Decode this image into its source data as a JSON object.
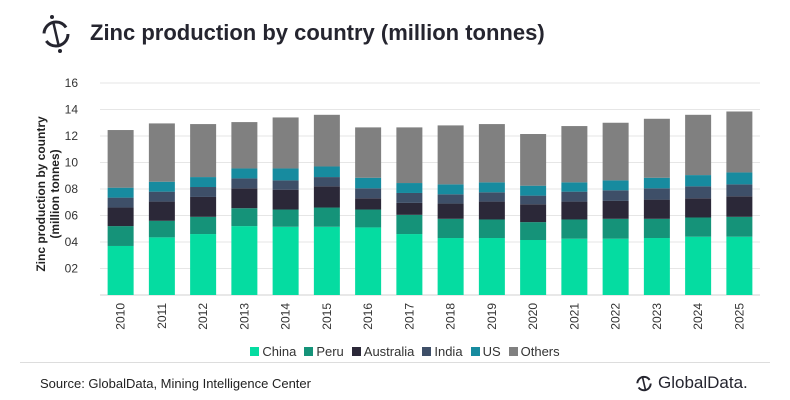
{
  "title": "Zinc production by country (million tonnes)",
  "source": "Source: GlobalData, Mining Intelligence Center",
  "brand": "GlobalData.",
  "chart_data": {
    "type": "bar",
    "stacked": true,
    "title": "Zinc production by country (million tonnes)",
    "xlabel": "",
    "ylabel": "Zinc production by country (million tonnes)",
    "ylim": [
      0,
      16
    ],
    "yticks": [
      "",
      "02",
      "04",
      "06",
      "08",
      "10",
      "12",
      "14",
      "16"
    ],
    "grid": true,
    "legend": "bottom",
    "categories": [
      "2010",
      "2011",
      "2012",
      "2013",
      "2014",
      "2015",
      "2016",
      "2017",
      "2018",
      "2019",
      "2020",
      "2021",
      "2022",
      "2023",
      "2024",
      "2025"
    ],
    "series": [
      {
        "name": "China",
        "color": "#05DCA1",
        "values": [
          3.7,
          4.35,
          4.6,
          5.2,
          5.15,
          5.15,
          5.1,
          4.6,
          4.3,
          4.3,
          4.15,
          4.25,
          4.25,
          4.3,
          4.4,
          4.4
        ]
      },
      {
        "name": "Peru",
        "color": "#159379",
        "values": [
          1.5,
          1.25,
          1.3,
          1.35,
          1.3,
          1.45,
          1.35,
          1.45,
          1.45,
          1.4,
          1.35,
          1.45,
          1.5,
          1.45,
          1.45,
          1.5
        ]
      },
      {
        "name": "Australia",
        "color": "#2B2838",
        "values": [
          1.4,
          1.45,
          1.5,
          1.5,
          1.5,
          1.6,
          0.85,
          0.9,
          1.15,
          1.35,
          1.35,
          1.35,
          1.35,
          1.45,
          1.45,
          1.55
        ]
      },
      {
        "name": "India",
        "color": "#3E4F68",
        "values": [
          0.75,
          0.75,
          0.75,
          0.75,
          0.7,
          0.7,
          0.75,
          0.75,
          0.7,
          0.7,
          0.65,
          0.75,
          0.8,
          0.85,
          0.9,
          0.9
        ]
      },
      {
        "name": "US",
        "color": "#178B9F",
        "values": [
          0.75,
          0.75,
          0.75,
          0.75,
          0.9,
          0.8,
          0.8,
          0.75,
          0.75,
          0.75,
          0.75,
          0.7,
          0.75,
          0.8,
          0.85,
          0.9
        ]
      },
      {
        "name": "Others",
        "color": "#808080",
        "values": [
          4.35,
          4.4,
          4.0,
          3.5,
          3.85,
          3.9,
          3.8,
          4.2,
          4.45,
          4.4,
          3.9,
          4.25,
          4.35,
          4.45,
          4.55,
          4.6
        ]
      }
    ]
  }
}
